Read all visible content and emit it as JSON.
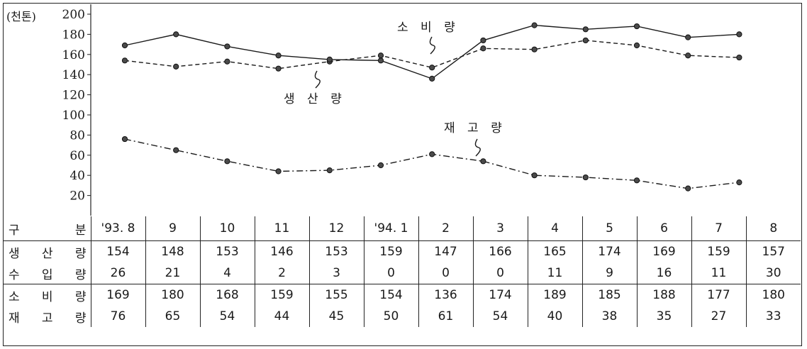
{
  "chart_data": {
    "type": "line",
    "unit_label": "(천톤)",
    "y_ticks": [
      "200",
      "180",
      "160",
      "140",
      "120",
      "100",
      "80",
      "60",
      "40",
      "20"
    ],
    "ylim": [
      0,
      200
    ],
    "categories": [
      "'93. 8",
      "9",
      "10",
      "11",
      "12",
      "'94. 1",
      "2",
      "3",
      "4",
      "5",
      "6",
      "7",
      "8"
    ],
    "series": [
      {
        "name": "생 산 량",
        "style": "dashed",
        "values": [
          154,
          148,
          153,
          146,
          153,
          159,
          147,
          166,
          165,
          174,
          169,
          159,
          157
        ]
      },
      {
        "name": "소 비 량",
        "style": "solid",
        "values": [
          169,
          180,
          168,
          159,
          155,
          154,
          136,
          174,
          189,
          185,
          188,
          177,
          180
        ]
      },
      {
        "name": "재 고 량",
        "style": "dash-dot",
        "values": [
          76,
          65,
          54,
          44,
          45,
          50,
          61,
          54,
          40,
          38,
          35,
          27,
          33
        ]
      }
    ],
    "annotations": [
      "소 비 량",
      "생 산 량",
      "재 고 량"
    ],
    "grid": false,
    "legend": "none"
  },
  "table": {
    "header_label": "구 분",
    "columns": [
      "'93. 8",
      "9",
      "10",
      "11",
      "12",
      "'94. 1",
      "2",
      "3",
      "4",
      "5",
      "6",
      "7",
      "8"
    ],
    "rows": [
      {
        "label": "생 산 량",
        "values": [
          "154",
          "148",
          "153",
          "146",
          "153",
          "159",
          "147",
          "166",
          "165",
          "174",
          "169",
          "159",
          "157"
        ]
      },
      {
        "label": "수 입 량",
        "values": [
          "26",
          "21",
          "4",
          "2",
          "3",
          "0",
          "0",
          "0",
          "11",
          "9",
          "16",
          "11",
          "30"
        ]
      },
      {
        "label": "소 비 량",
        "values": [
          "169",
          "180",
          "168",
          "159",
          "155",
          "154",
          "136",
          "174",
          "189",
          "185",
          "188",
          "177",
          "180"
        ]
      },
      {
        "label": "재 고 량",
        "values": [
          "76",
          "65",
          "54",
          "44",
          "45",
          "50",
          "61",
          "54",
          "40",
          "38",
          "35",
          "27",
          "33"
        ]
      }
    ]
  }
}
